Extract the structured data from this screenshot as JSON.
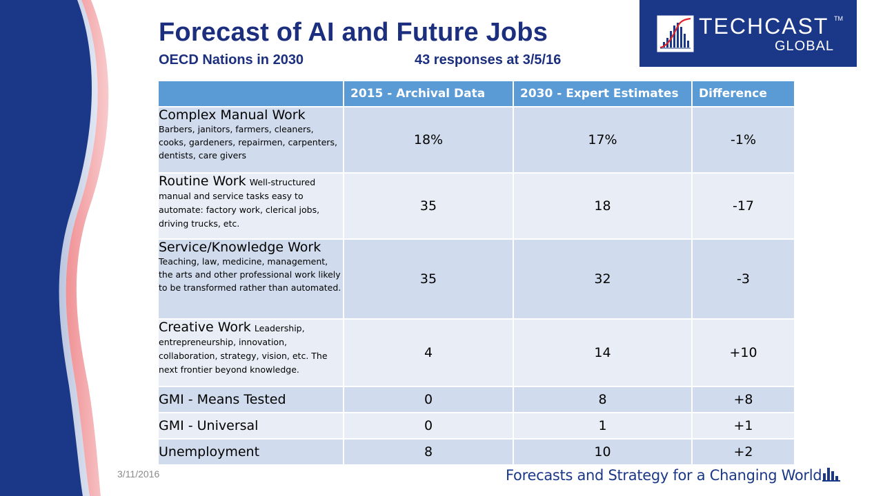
{
  "slide": {
    "title": "Forecast of AI and Future Jobs",
    "subtitle_left": "OECD Nations in 2030",
    "subtitle_right": "43 responses at 3/5/16",
    "date": "3/11/2016",
    "tagline": "Forecasts and Strategy for a Changing World"
  },
  "logo": {
    "name": "TECHCAST",
    "tm": "TM",
    "sub": "GLOBAL",
    "icon": "chart-logo-icon"
  },
  "table": {
    "headers": [
      "",
      "2015 - Archival Data",
      "2030 - Expert  Estimates",
      "Difference"
    ],
    "rows": [
      {
        "name": "Complex Manual Work",
        "desc": "Barbers, janitors, farmers, cleaners, cooks, gardeners, repairmen, carpenters, dentists, care givers",
        "v2015": "18%",
        "v2030": "17%",
        "diff": "-1%"
      },
      {
        "name": "Routine Work",
        "desc": "Well-structured manual and service tasks easy to automate: factory work, clerical jobs, driving trucks, etc.",
        "v2015": "35",
        "v2030": "18",
        "diff": "-17"
      },
      {
        "name": "Service/Knowledge Work",
        "desc": "Teaching, law, medicine, management, the arts and other professional work likely to be transformed rather than automated.",
        "v2015": "35",
        "v2030": "32",
        "diff": "-3"
      },
      {
        "name": "Creative Work",
        "desc": "Leadership, entrepreneurship,  innovation, collaboration, strategy, vision, etc. The next frontier beyond knowledge.",
        "v2015": "4",
        "v2030": "14",
        "diff": "+10"
      },
      {
        "name": "GMI - Means Tested",
        "desc": "",
        "v2015": "0",
        "v2030": "8",
        "diff": "+8"
      },
      {
        "name": "GMI - Universal",
        "desc": "",
        "v2015": "0",
        "v2030": "1",
        "diff": "+1"
      },
      {
        "name": "Unemployment",
        "desc": "",
        "v2015": "8",
        "v2030": "10",
        "diff": "+2"
      }
    ]
  },
  "colors": {
    "navy": "#1b3888",
    "title_blue": "#1b2f7e",
    "header_blue": "#5b9bd5",
    "row_dark": "#d0dced",
    "row_light": "#e9eef6",
    "accent_red": "#e0232a"
  }
}
